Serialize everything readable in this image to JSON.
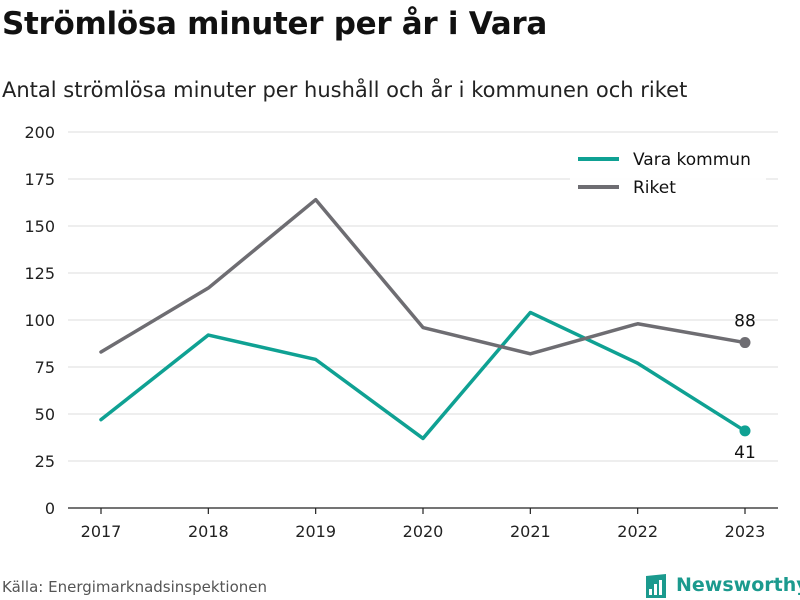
{
  "title": "Strömlösa minuter per år i Vara",
  "subtitle": "Antal strömlösa minuter per hushåll och år i kommunen och riket",
  "source": "Källa: Energimarknadsinspektionen",
  "brand": {
    "name": "Newsworthy",
    "icon": "newsworthy-chart-icon",
    "color": "#1b9a8e"
  },
  "chart_data": {
    "type": "line",
    "x": [
      2017,
      2018,
      2019,
      2020,
      2021,
      2022,
      2023
    ],
    "xlabel": "",
    "ylabel": "",
    "ylim": [
      0,
      200
    ],
    "yticks": [
      0,
      25,
      50,
      75,
      100,
      125,
      150,
      175,
      200
    ],
    "grid": true,
    "legend": "top-right",
    "series": [
      {
        "name": "Vara kommun",
        "color": "#0fa193",
        "values": [
          47,
          92,
          79,
          37,
          104,
          77,
          41
        ],
        "end_label": "41"
      },
      {
        "name": "Riket",
        "color": "#6e6d72",
        "values": [
          83,
          117,
          164,
          96,
          82,
          98,
          88
        ],
        "end_label": "88"
      }
    ]
  }
}
